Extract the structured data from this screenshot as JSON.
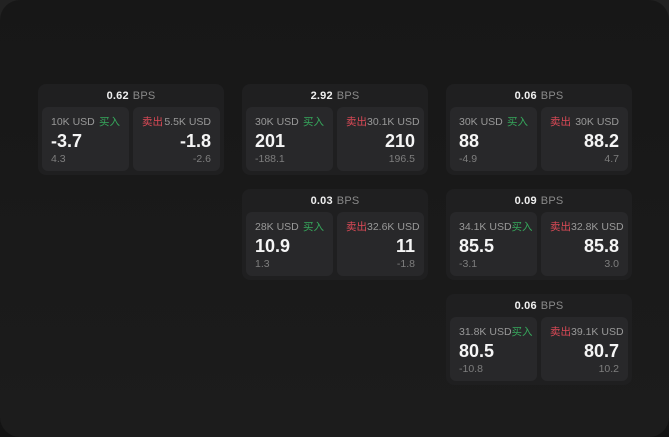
{
  "labels": {
    "bps": "BPS",
    "buy": "买入",
    "sell": "卖出"
  },
  "colors": {
    "buy_accent": "#36a85c",
    "sell_accent": "#dd4a57"
  },
  "cards": [
    {
      "col": 1,
      "row": 1,
      "bps": "0.62",
      "buy": {
        "amount": "10K USD",
        "price": "-3.7",
        "change": "4.3"
      },
      "sell": {
        "amount": "5.5K USD",
        "price": "-1.8",
        "change": "-2.6"
      }
    },
    {
      "col": 2,
      "row": 1,
      "bps": "2.92",
      "buy": {
        "amount": "30K USD",
        "price": "201",
        "change": "-188.1"
      },
      "sell": {
        "amount": "30.1K USD",
        "price": "210",
        "change": "196.5"
      }
    },
    {
      "col": 3,
      "row": 1,
      "bps": "0.06",
      "buy": {
        "amount": "30K USD",
        "price": "88",
        "change": "-4.9"
      },
      "sell": {
        "amount": "30K USD",
        "price": "88.2",
        "change": "4.7"
      }
    },
    {
      "col": 2,
      "row": 2,
      "bps": "0.03",
      "buy": {
        "amount": "28K USD",
        "price": "10.9",
        "change": "1.3"
      },
      "sell": {
        "amount": "32.6K USD",
        "price": "11",
        "change": "-1.8"
      }
    },
    {
      "col": 3,
      "row": 2,
      "bps": "0.09",
      "buy": {
        "amount": "34.1K USD",
        "price": "85.5",
        "change": "-3.1"
      },
      "sell": {
        "amount": "32.8K USD",
        "price": "85.8",
        "change": "3.0"
      }
    },
    {
      "col": 3,
      "row": 3,
      "bps": "0.06",
      "buy": {
        "amount": "31.8K USD",
        "price": "80.5",
        "change": "-10.8"
      },
      "sell": {
        "amount": "39.1K USD",
        "price": "80.7",
        "change": "10.2"
      }
    }
  ]
}
